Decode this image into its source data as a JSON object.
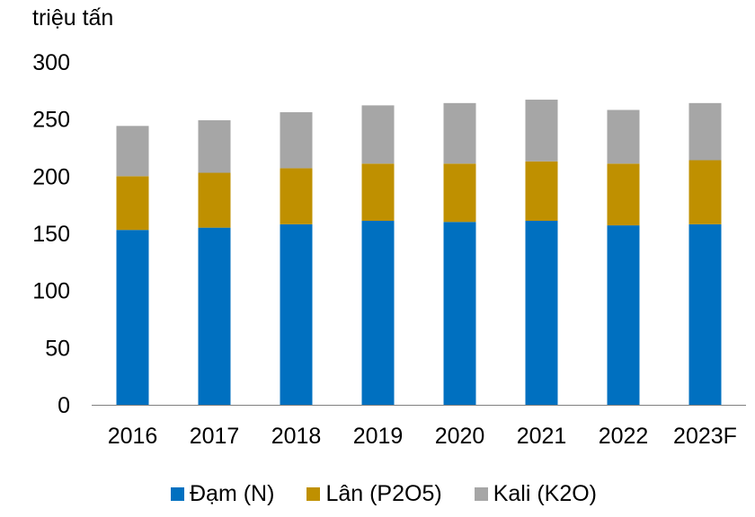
{
  "chart_data": {
    "type": "bar",
    "stacked": true,
    "ylabel": "triệu tấn",
    "ylim": [
      0,
      300
    ],
    "yticks": [
      "0",
      "50",
      "100",
      "150",
      "200",
      "250",
      "300"
    ],
    "categories": [
      "2016",
      "2017",
      "2018",
      "2019",
      "2020",
      "2021",
      "2022",
      "2023F"
    ],
    "series": [
      {
        "name": "Đạm (N)",
        "color": "#0070C0",
        "values": [
          153,
          155,
          158,
          161,
          160,
          161,
          157,
          158
        ]
      },
      {
        "name": "Lân (P2O5)",
        "color": "#BF9000",
        "values": [
          47,
          48,
          49,
          50,
          51,
          52,
          54,
          56
        ]
      },
      {
        "name": "Kali (K2O)",
        "color": "#A6A6A6",
        "values": [
          44,
          46,
          49,
          51,
          53,
          54,
          47,
          50
        ]
      }
    ],
    "grid": false,
    "legend_position": "bottom"
  }
}
